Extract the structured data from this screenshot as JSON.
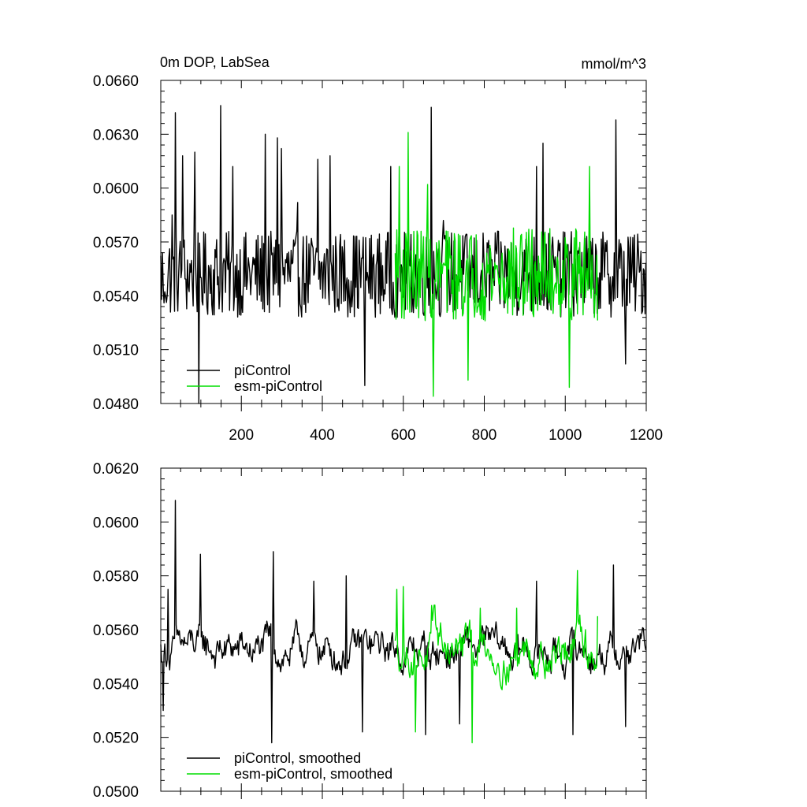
{
  "chart_data": [
    {
      "type": "line",
      "title": "0m DOP, LabSea",
      "units": "mmol/m^3",
      "xlabel": "",
      "ylabel": "",
      "xlim": [
        1,
        1200
      ],
      "ylim": [
        0.048,
        0.066
      ],
      "x_ticks": [
        200,
        400,
        600,
        800,
        1000,
        1200
      ],
      "x_tick_labels": [
        "200",
        "400",
        "600",
        "800",
        "1000",
        "1200"
      ],
      "y_ticks": [
        0.048,
        0.051,
        0.054,
        0.057,
        0.06,
        0.063,
        0.066
      ],
      "y_tick_labels": [
        "0.0480",
        "0.0510",
        "0.0540",
        "0.0570",
        "0.0600",
        "0.0630",
        "0.0660"
      ],
      "grid": false,
      "legend_position": "bottom-left",
      "series": [
        {
          "name": "piControl",
          "color": "#000000",
          "x_start": 1,
          "x_end": 1200,
          "mean": 0.0552,
          "noise_amplitude": 0.0024,
          "peaks": [
            [
              10,
              0.0536
            ],
            [
              30,
              0.0585
            ],
            [
              38,
              0.0642
            ],
            [
              55,
              0.0618
            ],
            [
              85,
              0.062
            ],
            [
              95,
              0.048
            ],
            [
              150,
              0.0646
            ],
            [
              180,
              0.0612
            ],
            [
              260,
              0.063
            ],
            [
              290,
              0.0628
            ],
            [
              300,
              0.0622
            ],
            [
              340,
              0.0592
            ],
            [
              390,
              0.0616
            ],
            [
              420,
              0.0618
            ],
            [
              505,
              0.049
            ],
            [
              570,
              0.0612
            ],
            [
              670,
              0.0645
            ],
            [
              700,
              0.0582
            ],
            [
              930,
              0.0612
            ],
            [
              945,
              0.0625
            ],
            [
              1125,
              0.0638
            ],
            [
              1150,
              0.0502
            ]
          ]
        },
        {
          "name": "esm-piControl",
          "color": "#00dd00",
          "x_start": 580,
          "x_end": 1080,
          "mean": 0.0552,
          "noise_amplitude": 0.0026,
          "peaks": [
            [
              590,
              0.0612
            ],
            [
              612,
              0.0631
            ],
            [
              660,
              0.0602
            ],
            [
              675,
              0.0484
            ],
            [
              760,
              0.0493
            ],
            [
              1010,
              0.0489
            ],
            [
              1060,
              0.0612
            ]
          ]
        }
      ]
    },
    {
      "type": "line",
      "title": "",
      "units": "",
      "xlabel": "",
      "ylabel": "",
      "xlim": [
        1,
        1200
      ],
      "ylim": [
        0.05,
        0.062
      ],
      "x_ticks": [
        200,
        400,
        600,
        800,
        1000,
        1200
      ],
      "x_tick_labels": [],
      "y_ticks": [
        0.05,
        0.052,
        0.054,
        0.056,
        0.058,
        0.06,
        0.062
      ],
      "y_tick_labels": [
        "0.0500",
        "0.0520",
        "0.0540",
        "0.0560",
        "0.0580",
        "0.0600",
        "0.0620"
      ],
      "grid": false,
      "legend_position": "bottom-left",
      "series": [
        {
          "name": "piControl, smoothed",
          "color": "#000000",
          "x_start": 1,
          "x_end": 1200,
          "mean": 0.0552,
          "noise_amplitude": 0.001,
          "peaks": [
            [
              8,
              0.053
            ],
            [
              20,
              0.0575
            ],
            [
              38,
              0.0608
            ],
            [
              100,
              0.0588
            ],
            [
              280,
              0.0589
            ],
            [
              275,
              0.0574
            ],
            [
              275,
              0.0518
            ],
            [
              380,
              0.0578
            ],
            [
              460,
              0.058
            ],
            [
              500,
              0.0522
            ],
            [
              655,
              0.0521
            ],
            [
              740,
              0.0525
            ],
            [
              930,
              0.0578
            ],
            [
              1020,
              0.0521
            ],
            [
              1120,
              0.0584
            ],
            [
              1150,
              0.0524
            ]
          ]
        },
        {
          "name": "esm-piControl, smoothed",
          "color": "#00dd00",
          "x_start": 580,
          "x_end": 1080,
          "mean": 0.0553,
          "noise_amplitude": 0.0011,
          "peaks": [
            [
              585,
              0.0575
            ],
            [
              600,
              0.0576
            ],
            [
              630,
              0.0522
            ],
            [
              670,
              0.0569
            ],
            [
              770,
              0.0518
            ],
            [
              790,
              0.0568
            ],
            [
              880,
              0.0568
            ],
            [
              1030,
              0.0582
            ],
            [
              1050,
              0.056
            ],
            [
              1080,
              0.0565
            ]
          ]
        }
      ]
    }
  ]
}
